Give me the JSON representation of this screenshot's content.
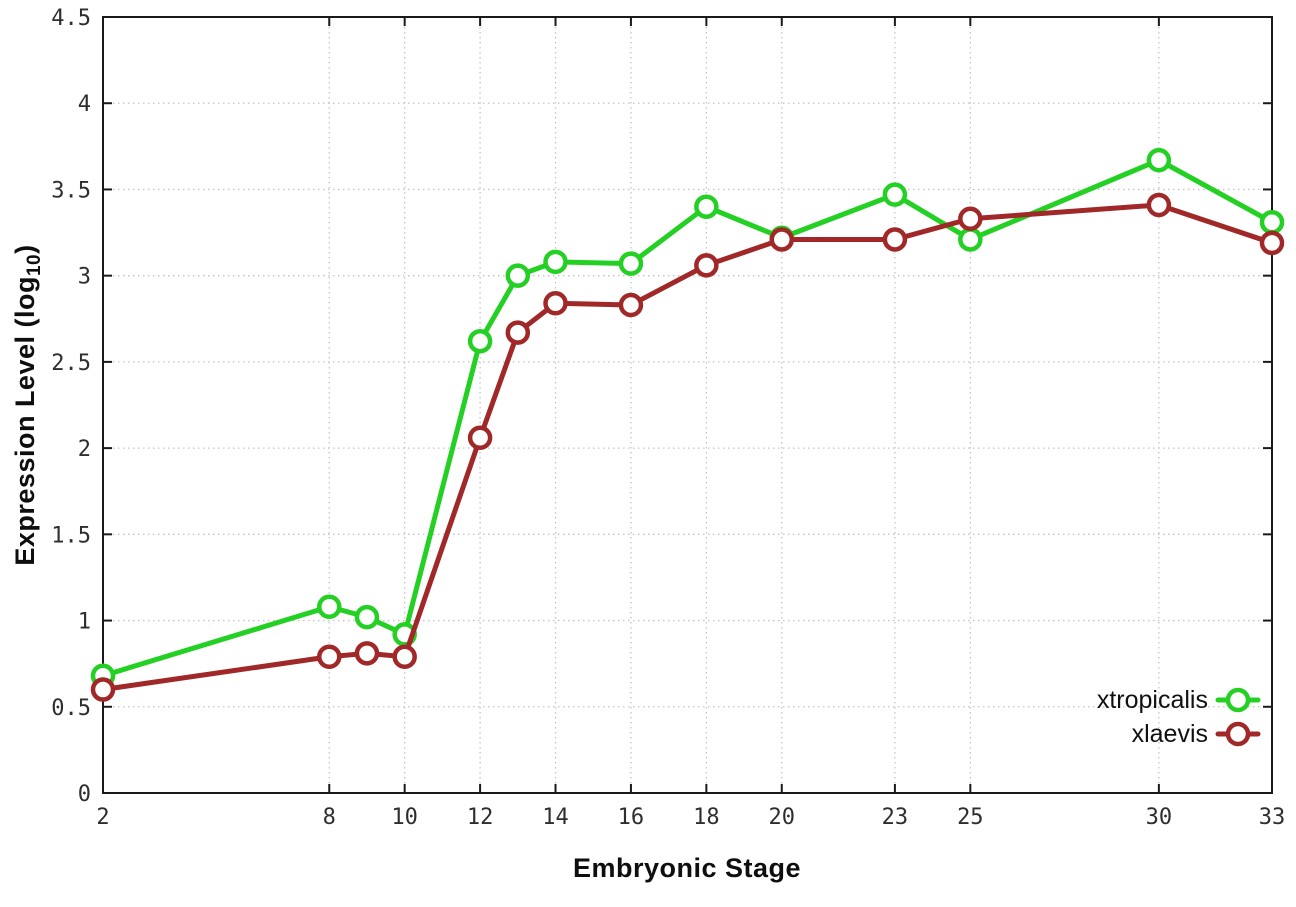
{
  "axes": {
    "xlabel": "Embryonic Stage",
    "ylabel_prefix": "Expression Level (log",
    "ylabel_sub": "10",
    "ylabel_suffix": ")"
  },
  "chart_data": {
    "type": "line",
    "title": "",
    "xlabel": "Embryonic Stage",
    "ylabel": "Expression Level (log10)",
    "x": [
      2,
      8,
      9,
      10,
      12,
      13,
      14,
      16,
      18,
      20,
      23,
      25,
      30,
      33
    ],
    "series": [
      {
        "name": "xtropicalis",
        "color": "#23d023",
        "values": [
          0.68,
          1.08,
          1.02,
          0.92,
          2.62,
          3.0,
          3.08,
          3.07,
          3.4,
          3.22,
          3.47,
          3.21,
          3.67,
          3.31
        ]
      },
      {
        "name": "xlaevis",
        "color": "#a12828",
        "values": [
          0.6,
          0.79,
          0.81,
          0.79,
          2.06,
          2.67,
          2.84,
          2.83,
          3.06,
          3.21,
          3.21,
          3.33,
          3.41,
          3.19
        ]
      }
    ],
    "xlim": [
      2,
      33
    ],
    "ylim": [
      0,
      4.5
    ],
    "xtick_values": [
      2,
      8,
      10,
      12,
      14,
      16,
      18,
      20,
      23,
      25,
      30,
      33
    ],
    "xtick_labels": [
      "2",
      "8",
      "10",
      "12",
      "14",
      "16",
      "18",
      "20",
      "23",
      "25",
      "30",
      "33"
    ],
    "ytick_values": [
      0,
      0.5,
      1,
      1.5,
      2,
      2.5,
      3,
      3.5,
      4,
      4.5
    ],
    "ytick_labels": [
      "0",
      "0.5",
      "1",
      "1.5",
      "2",
      "2.5",
      "3",
      "3.5",
      "4",
      "4.5"
    ],
    "grid": true,
    "legend_position": "bottom-right",
    "colors": {
      "border": "#1a1a1a",
      "grid": "#c4c4c4",
      "tick_text": "#2e2e2e",
      "background": "#ffffff"
    }
  }
}
